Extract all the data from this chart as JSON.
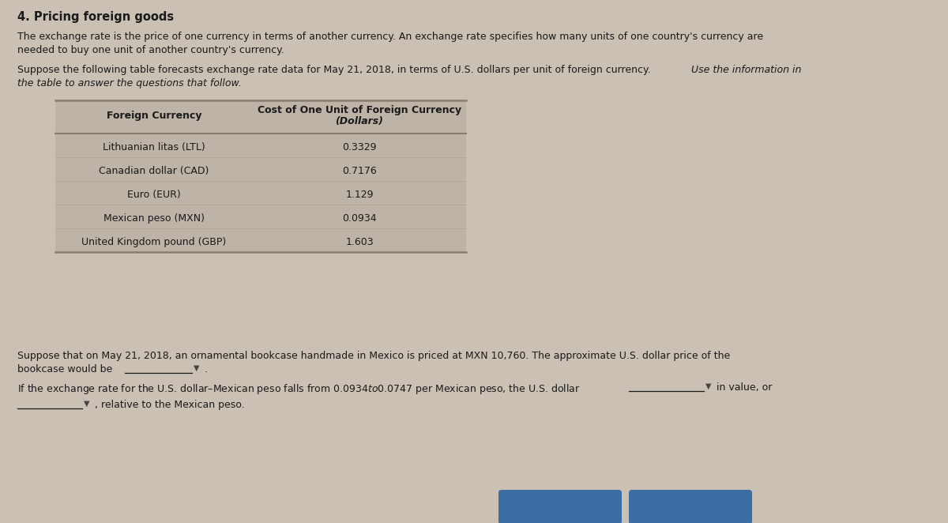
{
  "title": "4. Pricing foreign goods",
  "para1_line1": "The exchange rate is the price of one currency in terms of another currency. An exchange rate specifies how many units of one country's currency are",
  "para1_line2": "needed to buy one unit of another country's currency.",
  "para2_normal": "Suppose the following table forecasts exchange rate data for May 21, 2018, in terms of U.S. dollars per unit of foreign currency. ",
  "para2_italic1": "Use the information in",
  "para2_italic2": "the table to answer the questions that follow.",
  "table_header1": "Cost of One Unit of Foreign Currency",
  "table_header2": "(Dollars)",
  "table_col1_header": "Foreign Currency",
  "table_rows": [
    [
      "Lithuanian litas (LTL)",
      "0.3329"
    ],
    [
      "Canadian dollar (CAD)",
      "0.7176"
    ],
    [
      "Euro (EUR)",
      "1.129"
    ],
    [
      "Mexican peso (MXN)",
      "0.0934"
    ],
    [
      "United Kingdom pound (GBP)",
      "1.603"
    ]
  ],
  "para3_line1": "Suppose that on May 21, 2018, an ornamental bookcase handmade in Mexico is priced at MXN 10,760. The approximate U.S. dollar price of the",
  "para3_line2": "bookcase would be",
  "para4": "If the exchange rate for the U.S. dollar–Mexican peso falls from $0.0934 to $0.0747 per Mexican peso, the U.S. dollar",
  "para4_end": "in value, or",
  "para5_end": ", relative to the Mexican peso.",
  "bg_color": "#cac0b3",
  "table_bg": "#bdb3a6",
  "line_color": "#8a7d6e",
  "text_color": "#1a1a1a",
  "btn_color": "#3a6ea5",
  "font_size_title": 10.5,
  "font_size_body": 9.0,
  "font_size_table": 9.0
}
